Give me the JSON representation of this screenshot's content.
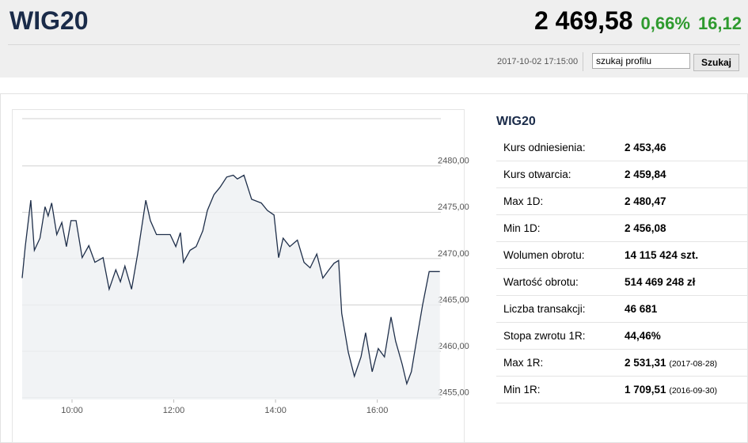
{
  "header": {
    "title": "WIG20",
    "price": "2 469,58",
    "change_pct": "0,66%",
    "change_abs": "16,12",
    "datetime": "2017-10-02 17:15:00",
    "search_value": "szukaj profilu",
    "search_button": "Szukaj"
  },
  "chart_data": {
    "type": "line",
    "x": [
      9.02,
      9.08,
      9.19,
      9.26,
      9.37,
      9.47,
      9.53,
      9.6,
      9.7,
      9.8,
      9.89,
      9.98,
      10.08,
      10.2,
      10.33,
      10.45,
      10.61,
      10.73,
      10.86,
      10.95,
      11.04,
      11.17,
      11.29,
      11.45,
      11.54,
      11.66,
      11.93,
      12.04,
      12.13,
      12.19,
      12.32,
      12.44,
      12.57,
      12.66,
      12.79,
      12.91,
      13.04,
      13.17,
      13.25,
      13.38,
      13.53,
      13.72,
      13.84,
      13.97,
      14.06,
      14.15,
      14.28,
      14.43,
      14.56,
      14.68,
      14.81,
      14.93,
      15.05,
      15.15,
      15.24,
      15.3,
      15.43,
      15.55,
      15.68,
      15.77,
      15.9,
      16.02,
      16.14,
      16.27,
      16.36,
      16.49,
      16.58,
      16.67,
      16.77,
      16.89,
      17.02,
      17.23
    ],
    "values": [
      2467.9,
      2471.3,
      2476.3,
      2470.9,
      2472.2,
      2475.6,
      2474.6,
      2476.0,
      2472.6,
      2473.9,
      2471.3,
      2474.1,
      2474.1,
      2470.1,
      2471.4,
      2469.6,
      2470.1,
      2466.7,
      2468.8,
      2467.5,
      2469.2,
      2466.7,
      2470.5,
      2476.3,
      2474.1,
      2472.6,
      2472.6,
      2471.3,
      2472.8,
      2469.6,
      2470.9,
      2471.3,
      2473.0,
      2475.2,
      2476.9,
      2477.7,
      2478.8,
      2479.0,
      2478.6,
      2479.0,
      2476.4,
      2476.0,
      2475.2,
      2474.7,
      2470.1,
      2472.2,
      2471.3,
      2472.0,
      2469.6,
      2469.0,
      2470.5,
      2467.9,
      2468.8,
      2469.5,
      2469.8,
      2464.1,
      2459.9,
      2457.3,
      2459.4,
      2462.0,
      2457.8,
      2460.3,
      2459.4,
      2463.7,
      2461.1,
      2458.6,
      2456.5,
      2457.8,
      2461.1,
      2465.0,
      2468.6,
      2468.6
    ],
    "color": "#1f2f4a",
    "xlim": [
      9.02,
      17.25
    ],
    "ylim": [
      2454.8,
      2485.1
    ],
    "xticks": [
      {
        "value": 10,
        "label": "10:00"
      },
      {
        "value": 12,
        "label": "12:00"
      },
      {
        "value": 14,
        "label": "14:00"
      },
      {
        "value": 16,
        "label": "16:00"
      }
    ],
    "yticks": [
      {
        "value": 2455,
        "label": "2455,00"
      },
      {
        "value": 2460,
        "label": "2460,00"
      },
      {
        "value": 2465,
        "label": "2465,00"
      },
      {
        "value": 2470,
        "label": "2470,00"
      },
      {
        "value": 2475,
        "label": "2475,00"
      },
      {
        "value": 2480,
        "label": "2480,00"
      }
    ],
    "grid": true
  },
  "table": {
    "title": "WIG20",
    "rows": [
      [
        "Kurs odniesienia:",
        "2 453,46"
      ],
      [
        "Kurs otwarcia:",
        "2 459,84"
      ],
      [
        "Max 1D:",
        "2 480,47"
      ],
      [
        "Min 1D:",
        "2 456,08"
      ],
      [
        "Wolumen obrotu:",
        "14 115 424 szt."
      ],
      [
        "Wartość obrotu:",
        "514 469 248 zł"
      ],
      [
        "Liczba transakcji:",
        "46 681"
      ],
      [
        "Stopa zwrotu 1R:",
        "44,46%"
      ],
      [
        "Max 1R:",
        "2 531,31",
        "(2017-08-28)"
      ],
      [
        "Min 1R:",
        "1 709,51",
        "(2016-09-30)"
      ]
    ]
  }
}
